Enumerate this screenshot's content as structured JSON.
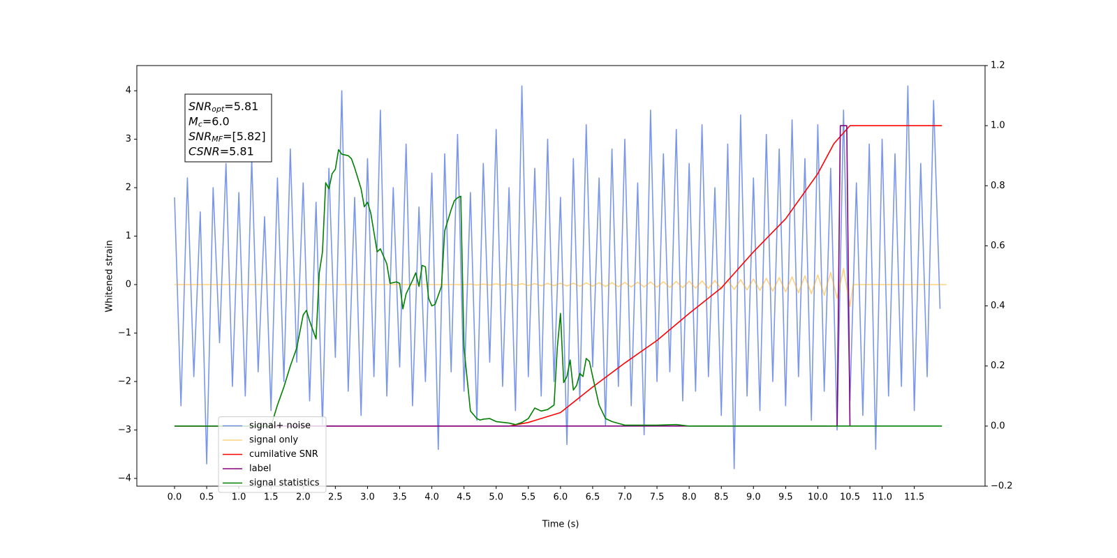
{
  "chart_data": {
    "type": "line",
    "xlabel": "Time (s)",
    "ylabel": "Whitened strain",
    "xlim": [
      -0.586,
      12.6
    ],
    "ylim": [
      -4.16,
      4.52
    ],
    "y2lim": [
      -0.2,
      1.2
    ],
    "xticks": [
      {
        "value": 0,
        "label": "0.0"
      },
      0.5,
      {
        "value": 1,
        "label": "1.0"
      },
      1.5,
      {
        "value": 2,
        "label": "2.0"
      },
      2.5,
      {
        "value": 3,
        "label": "3.0"
      },
      3.5,
      {
        "value": 4,
        "label": "4.0"
      },
      4.5,
      {
        "value": 5,
        "label": "5.0"
      },
      5.5,
      {
        "value": 6,
        "label": "6.0"
      },
      6.5,
      {
        "value": 7,
        "label": "7.0"
      },
      7.5,
      {
        "value": 8,
        "label": "8.0"
      },
      8.5,
      {
        "value": 9,
        "label": "9.0"
      },
      9.5,
      {
        "value": 10,
        "label": "10.0"
      },
      10.5,
      {
        "value": 11,
        "label": "11.0"
      },
      11.5
    ],
    "yticks": [
      {
        "value": -4,
        "label": "−4"
      },
      {
        "value": -3,
        "label": "−3"
      },
      {
        "value": -2,
        "label": "−2"
      },
      {
        "value": -1,
        "label": "−1"
      },
      0,
      1,
      2,
      3,
      4
    ],
    "y2ticks": [
      {
        "value": -0.2,
        "label": "−0.2"
      },
      {
        "value": 0,
        "label": "0.0"
      },
      0.2,
      0.4,
      0.6,
      0.8,
      {
        "value": 1,
        "label": "1.0"
      },
      1.2
    ],
    "legend": "lower left",
    "annotation": [
      {
        "main": "SNR",
        "sub": "opt",
        "rest": "=5.81"
      },
      {
        "main": "M",
        "sub": "c",
        "rest": "=6.0"
      },
      {
        "main": "SNR",
        "sub": "MF",
        "rest": "=[5.82]"
      },
      {
        "main": "CSNR",
        "sub": "",
        "rest": "=5.81"
      }
    ],
    "series": [
      {
        "name": "signal+ noise",
        "color": "#4169e1",
        "alpha": 0.7,
        "axis": "y",
        "x": [
          0.0,
          0.1,
          0.2,
          0.3,
          0.4,
          0.5,
          0.6,
          0.7,
          0.8,
          0.9,
          1.0,
          1.1,
          1.2,
          1.3,
          1.4,
          1.5,
          1.6,
          1.7,
          1.8,
          1.9,
          2.0,
          2.1,
          2.2,
          2.3,
          2.4,
          2.5,
          2.6,
          2.7,
          2.8,
          2.9,
          3.0,
          3.1,
          3.2,
          3.3,
          3.4,
          3.5,
          3.6,
          3.7,
          3.8,
          3.9,
          4.0,
          4.1,
          4.2,
          4.3,
          4.4,
          4.5,
          4.6,
          4.7,
          4.8,
          4.9,
          5.0,
          5.1,
          5.2,
          5.3,
          5.4,
          5.5,
          5.6,
          5.7,
          5.8,
          5.9,
          6.0,
          6.1,
          6.2,
          6.3,
          6.4,
          6.5,
          6.6,
          6.7,
          6.8,
          6.9,
          7.0,
          7.1,
          7.2,
          7.3,
          7.4,
          7.5,
          7.6,
          7.7,
          7.8,
          7.9,
          8.0,
          8.1,
          8.2,
          8.3,
          8.4,
          8.5,
          8.6,
          8.7,
          8.8,
          8.9,
          9.0,
          9.1,
          9.2,
          9.3,
          9.4,
          9.5,
          9.6,
          9.7,
          9.8,
          9.9,
          10.0,
          10.1,
          10.2,
          10.3,
          10.4,
          10.5,
          10.6,
          10.7,
          10.8,
          10.9,
          11.0,
          11.1,
          11.2,
          11.3,
          11.4,
          11.5,
          11.6,
          11.7,
          11.8,
          11.9
        ],
        "values": [
          1.8,
          -2.5,
          2.2,
          -1.9,
          1.5,
          -3.7,
          2.0,
          -1.2,
          2.5,
          -2.1,
          1.9,
          -2.3,
          2.6,
          -1.8,
          1.4,
          -2.6,
          2.2,
          -2.0,
          2.8,
          -1.6,
          2.1,
          -2.4,
          1.7,
          -2.9,
          2.4,
          -1.5,
          4.0,
          -2.2,
          1.8,
          -2.7,
          2.6,
          -1.9,
          3.6,
          -2.3,
          2.0,
          -1.7,
          2.9,
          -2.5,
          1.6,
          -2.0,
          2.3,
          -3.4,
          2.7,
          -1.8,
          3.1,
          -2.2,
          1.9,
          -2.8,
          2.5,
          -1.6,
          3.2,
          -2.1,
          2.0,
          -2.6,
          4.1,
          -1.9,
          2.4,
          -2.3,
          3.0,
          -2.0,
          1.8,
          -3.3,
          2.6,
          -2.4,
          3.3,
          -1.7,
          2.2,
          -2.9,
          2.8,
          -2.1,
          3.0,
          -2.5,
          2.1,
          -3.1,
          3.6,
          -2.0,
          2.7,
          -1.8,
          3.2,
          -2.4,
          2.5,
          -2.2,
          3.3,
          -1.9,
          2.0,
          -2.7,
          2.9,
          -3.8,
          3.5,
          -2.3,
          2.2,
          -2.6,
          3.1,
          -2.0,
          2.8,
          -2.5,
          3.4,
          -1.9,
          2.6,
          -2.8,
          3.3,
          -2.2,
          2.4,
          -3.0,
          3.6,
          -2.4,
          2.1,
          -2.7,
          2.9,
          -3.4,
          3.0,
          -2.3,
          2.7,
          -2.1,
          4.1,
          -2.6,
          2.5,
          -1.9,
          3.8,
          -0.5
        ]
      },
      {
        "name": "signal only",
        "color": "#ffa500",
        "alpha": 0.5,
        "axis": "y",
        "x": [
          0.0,
          4.5,
          4.6,
          4.7,
          4.8,
          4.9,
          5.0,
          5.1,
          5.2,
          5.3,
          5.4,
          5.5,
          5.6,
          5.7,
          5.8,
          5.9,
          6.0,
          6.1,
          6.2,
          6.3,
          6.4,
          6.5,
          6.6,
          6.7,
          6.8,
          6.9,
          7.0,
          7.1,
          7.2,
          7.3,
          7.4,
          7.5,
          7.6,
          7.7,
          7.8,
          7.9,
          8.0,
          8.1,
          8.2,
          8.3,
          8.4,
          8.5,
          8.6,
          8.7,
          8.8,
          8.9,
          9.0,
          9.1,
          9.2,
          9.3,
          9.4,
          9.5,
          9.6,
          9.7,
          9.8,
          9.9,
          10.0,
          10.1,
          10.2,
          10.3,
          10.4,
          10.5,
          10.55,
          12.0
        ],
        "values": [
          0,
          0,
          0.01,
          -0.01,
          0.01,
          -0.01,
          0.015,
          -0.015,
          0.015,
          -0.02,
          0.02,
          -0.02,
          0.02,
          -0.025,
          0.025,
          -0.025,
          0.03,
          -0.03,
          0.03,
          -0.035,
          0.035,
          -0.035,
          0.04,
          -0.04,
          0.04,
          -0.045,
          0.045,
          -0.05,
          0.05,
          -0.05,
          0.055,
          -0.055,
          0.06,
          -0.06,
          0.065,
          -0.065,
          0.07,
          -0.075,
          0.075,
          -0.08,
          0.085,
          -0.09,
          0.09,
          -0.1,
          0.1,
          -0.11,
          0.115,
          -0.12,
          0.13,
          -0.135,
          0.145,
          -0.15,
          0.16,
          -0.17,
          0.18,
          -0.19,
          0.2,
          -0.22,
          0.25,
          -0.28,
          0.33,
          -0.45,
          0,
          0
        ]
      },
      {
        "name": "cumilative SNR",
        "color": "#ff0000",
        "alpha": 1,
        "axis": "y2",
        "x": [
          0.0,
          5.2,
          5.5,
          6.0,
          6.5,
          7.0,
          7.5,
          8.0,
          8.5,
          9.0,
          9.5,
          10.0,
          10.25,
          10.5,
          11.93
        ],
        "values": [
          0,
          0,
          0.012,
          0.045,
          0.13,
          0.21,
          0.285,
          0.375,
          0.46,
          0.58,
          0.69,
          0.84,
          0.94,
          1.0,
          1.0
        ]
      },
      {
        "name": "label",
        "color": "#800080",
        "alpha": 1,
        "axis": "y2",
        "x": [
          0.0,
          10.3,
          10.35,
          10.45,
          10.5
        ],
        "values": [
          0,
          0,
          1.0,
          1.0,
          0
        ]
      },
      {
        "name": "signal statistics",
        "color": "#008000",
        "alpha": 1,
        "axis": "y2",
        "x": [
          0.0,
          1.5,
          1.6,
          1.7,
          1.8,
          1.9,
          2.0,
          2.05,
          2.1,
          2.2,
          2.25,
          2.3,
          2.35,
          2.4,
          2.45,
          2.5,
          2.55,
          2.6,
          2.7,
          2.75,
          2.8,
          2.9,
          2.95,
          3.0,
          3.05,
          3.15,
          3.2,
          3.3,
          3.35,
          3.45,
          3.5,
          3.55,
          3.6,
          3.7,
          3.75,
          3.8,
          3.85,
          3.9,
          3.95,
          4.0,
          4.05,
          4.15,
          4.2,
          4.3,
          4.35,
          4.4,
          4.45,
          4.5,
          4.6,
          4.7,
          4.75,
          4.8,
          4.9,
          4.95,
          5.0,
          5.2,
          5.3,
          5.4,
          5.5,
          5.6,
          5.7,
          5.8,
          5.9,
          5.95,
          6.0,
          6.05,
          6.1,
          6.15,
          6.2,
          6.25,
          6.3,
          6.35,
          6.4,
          6.45,
          6.5,
          6.6,
          6.7,
          6.8,
          7.0,
          7.5,
          7.8,
          8.0,
          11.93
        ],
        "values": [
          0,
          0,
          0.07,
          0.13,
          0.2,
          0.26,
          0.37,
          0.385,
          0.35,
          0.29,
          0.51,
          0.58,
          0.81,
          0.79,
          0.84,
          0.855,
          0.92,
          0.905,
          0.9,
          0.89,
          0.86,
          0.79,
          0.73,
          0.745,
          0.71,
          0.58,
          0.59,
          0.54,
          0.475,
          0.48,
          0.475,
          0.39,
          0.44,
          0.485,
          0.51,
          0.465,
          0.535,
          0.53,
          0.425,
          0.4,
          0.405,
          0.465,
          0.65,
          0.72,
          0.75,
          0.76,
          0.765,
          0.26,
          0.05,
          0.025,
          0.02,
          0.023,
          0.025,
          0.02,
          0.015,
          0.01,
          0.005,
          0.012,
          0.025,
          0.06,
          0.05,
          0.055,
          0.07,
          0.26,
          0.375,
          0.145,
          0.165,
          0.22,
          0.12,
          0.135,
          0.175,
          0.165,
          0.225,
          0.215,
          0.165,
          0.07,
          0.025,
          0.015,
          0.003,
          0.003,
          0.005,
          0,
          0
        ]
      }
    ]
  }
}
